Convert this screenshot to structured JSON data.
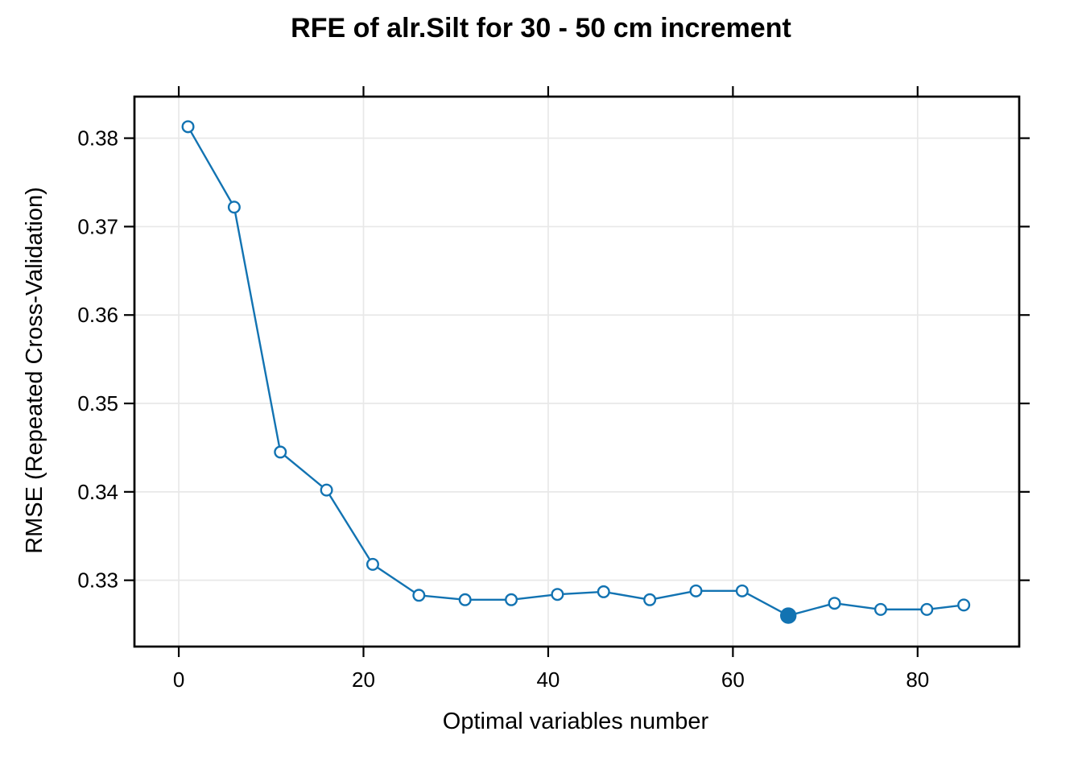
{
  "chart_data": {
    "type": "line",
    "title": "RFE of alr.Silt for 30 - 50 cm increment",
    "xlabel": "Optimal variables number",
    "ylabel": "RMSE (Repeated Cross-Validation)",
    "series": [
      {
        "name": "RMSE (Repeated Cross-Validation)",
        "x": [
          1,
          6,
          11,
          16,
          21,
          26,
          31,
          36,
          41,
          46,
          51,
          56,
          61,
          66,
          71,
          76,
          81,
          85
        ],
        "y": [
          0.3813,
          0.3722,
          0.3445,
          0.3402,
          0.3318,
          0.3283,
          0.3278,
          0.3278,
          0.3284,
          0.3287,
          0.3278,
          0.3288,
          0.3288,
          0.326,
          0.3274,
          0.3267,
          0.3267,
          0.3272
        ]
      }
    ],
    "best_point": {
      "x": 66,
      "y": 0.326,
      "style": "filled-circle"
    },
    "xlim": [
      -4.8,
      91.0
    ],
    "ylim": [
      0.3225,
      0.3847
    ],
    "xticks": {
      "values": [
        0,
        20,
        40,
        60,
        80
      ],
      "labels": [
        "0",
        "20",
        "40",
        "60",
        "80"
      ]
    },
    "yticks": {
      "values": [
        0.33,
        0.34,
        0.35,
        0.36,
        0.37,
        0.38
      ],
      "labels": [
        "0.33",
        "0.34",
        "0.35",
        "0.36",
        "0.37",
        "0.38"
      ]
    },
    "grid": true,
    "tick_sides": [
      "bottom",
      "left",
      "top",
      "right"
    ],
    "legend": "none",
    "colors": {
      "line": "#1273b2",
      "marker_fill": "#ffffff",
      "best_marker": "#1273b2",
      "grid": "#e8e8e8",
      "axis": "#000000",
      "background": "#ffffff"
    }
  }
}
